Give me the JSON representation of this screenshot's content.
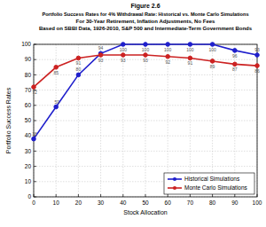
{
  "chart_data": {
    "type": "line",
    "title": "Figure 2.6",
    "subtitle": [
      "Portfolio Success Rates for 4% Withdrawal Rate: Historical vs. Monte Carlo Simulations",
      "For 30-Year Retirement, Inflation Adjustments, No Fees",
      "Based on SBBI Data, 1926-2010, S&P 500 and Intermediate-Term Government Bonds"
    ],
    "x_label": "Stock Allocation",
    "y_label": "Portfolio Success Rates",
    "x": [
      0,
      10,
      20,
      30,
      40,
      50,
      60,
      70,
      80,
      90,
      100
    ],
    "series": [
      {
        "name": "Historical Simulations",
        "color": "#1f1fcc",
        "marker": "circle",
        "values": [
          38,
          59,
          80,
          94,
          100,
          100,
          100,
          100,
          100,
          96,
          93
        ]
      },
      {
        "name": "Monte Carlo Simulations",
        "color": "#cc2222",
        "marker": "circle",
        "values": [
          72,
          85,
          91,
          93,
          93,
          93,
          92,
          91,
          89,
          87,
          86
        ]
      }
    ],
    "xlim": [
      0,
      100
    ],
    "xticks": [
      0,
      10,
      20,
      30,
      40,
      50,
      60,
      70,
      80,
      90,
      100
    ],
    "ylim": [
      0,
      100
    ],
    "yticks": [
      0,
      10,
      20,
      30,
      40,
      50,
      60,
      70,
      80,
      90,
      100
    ],
    "grid": true,
    "legend": "lower right",
    "data_labels": true
  }
}
